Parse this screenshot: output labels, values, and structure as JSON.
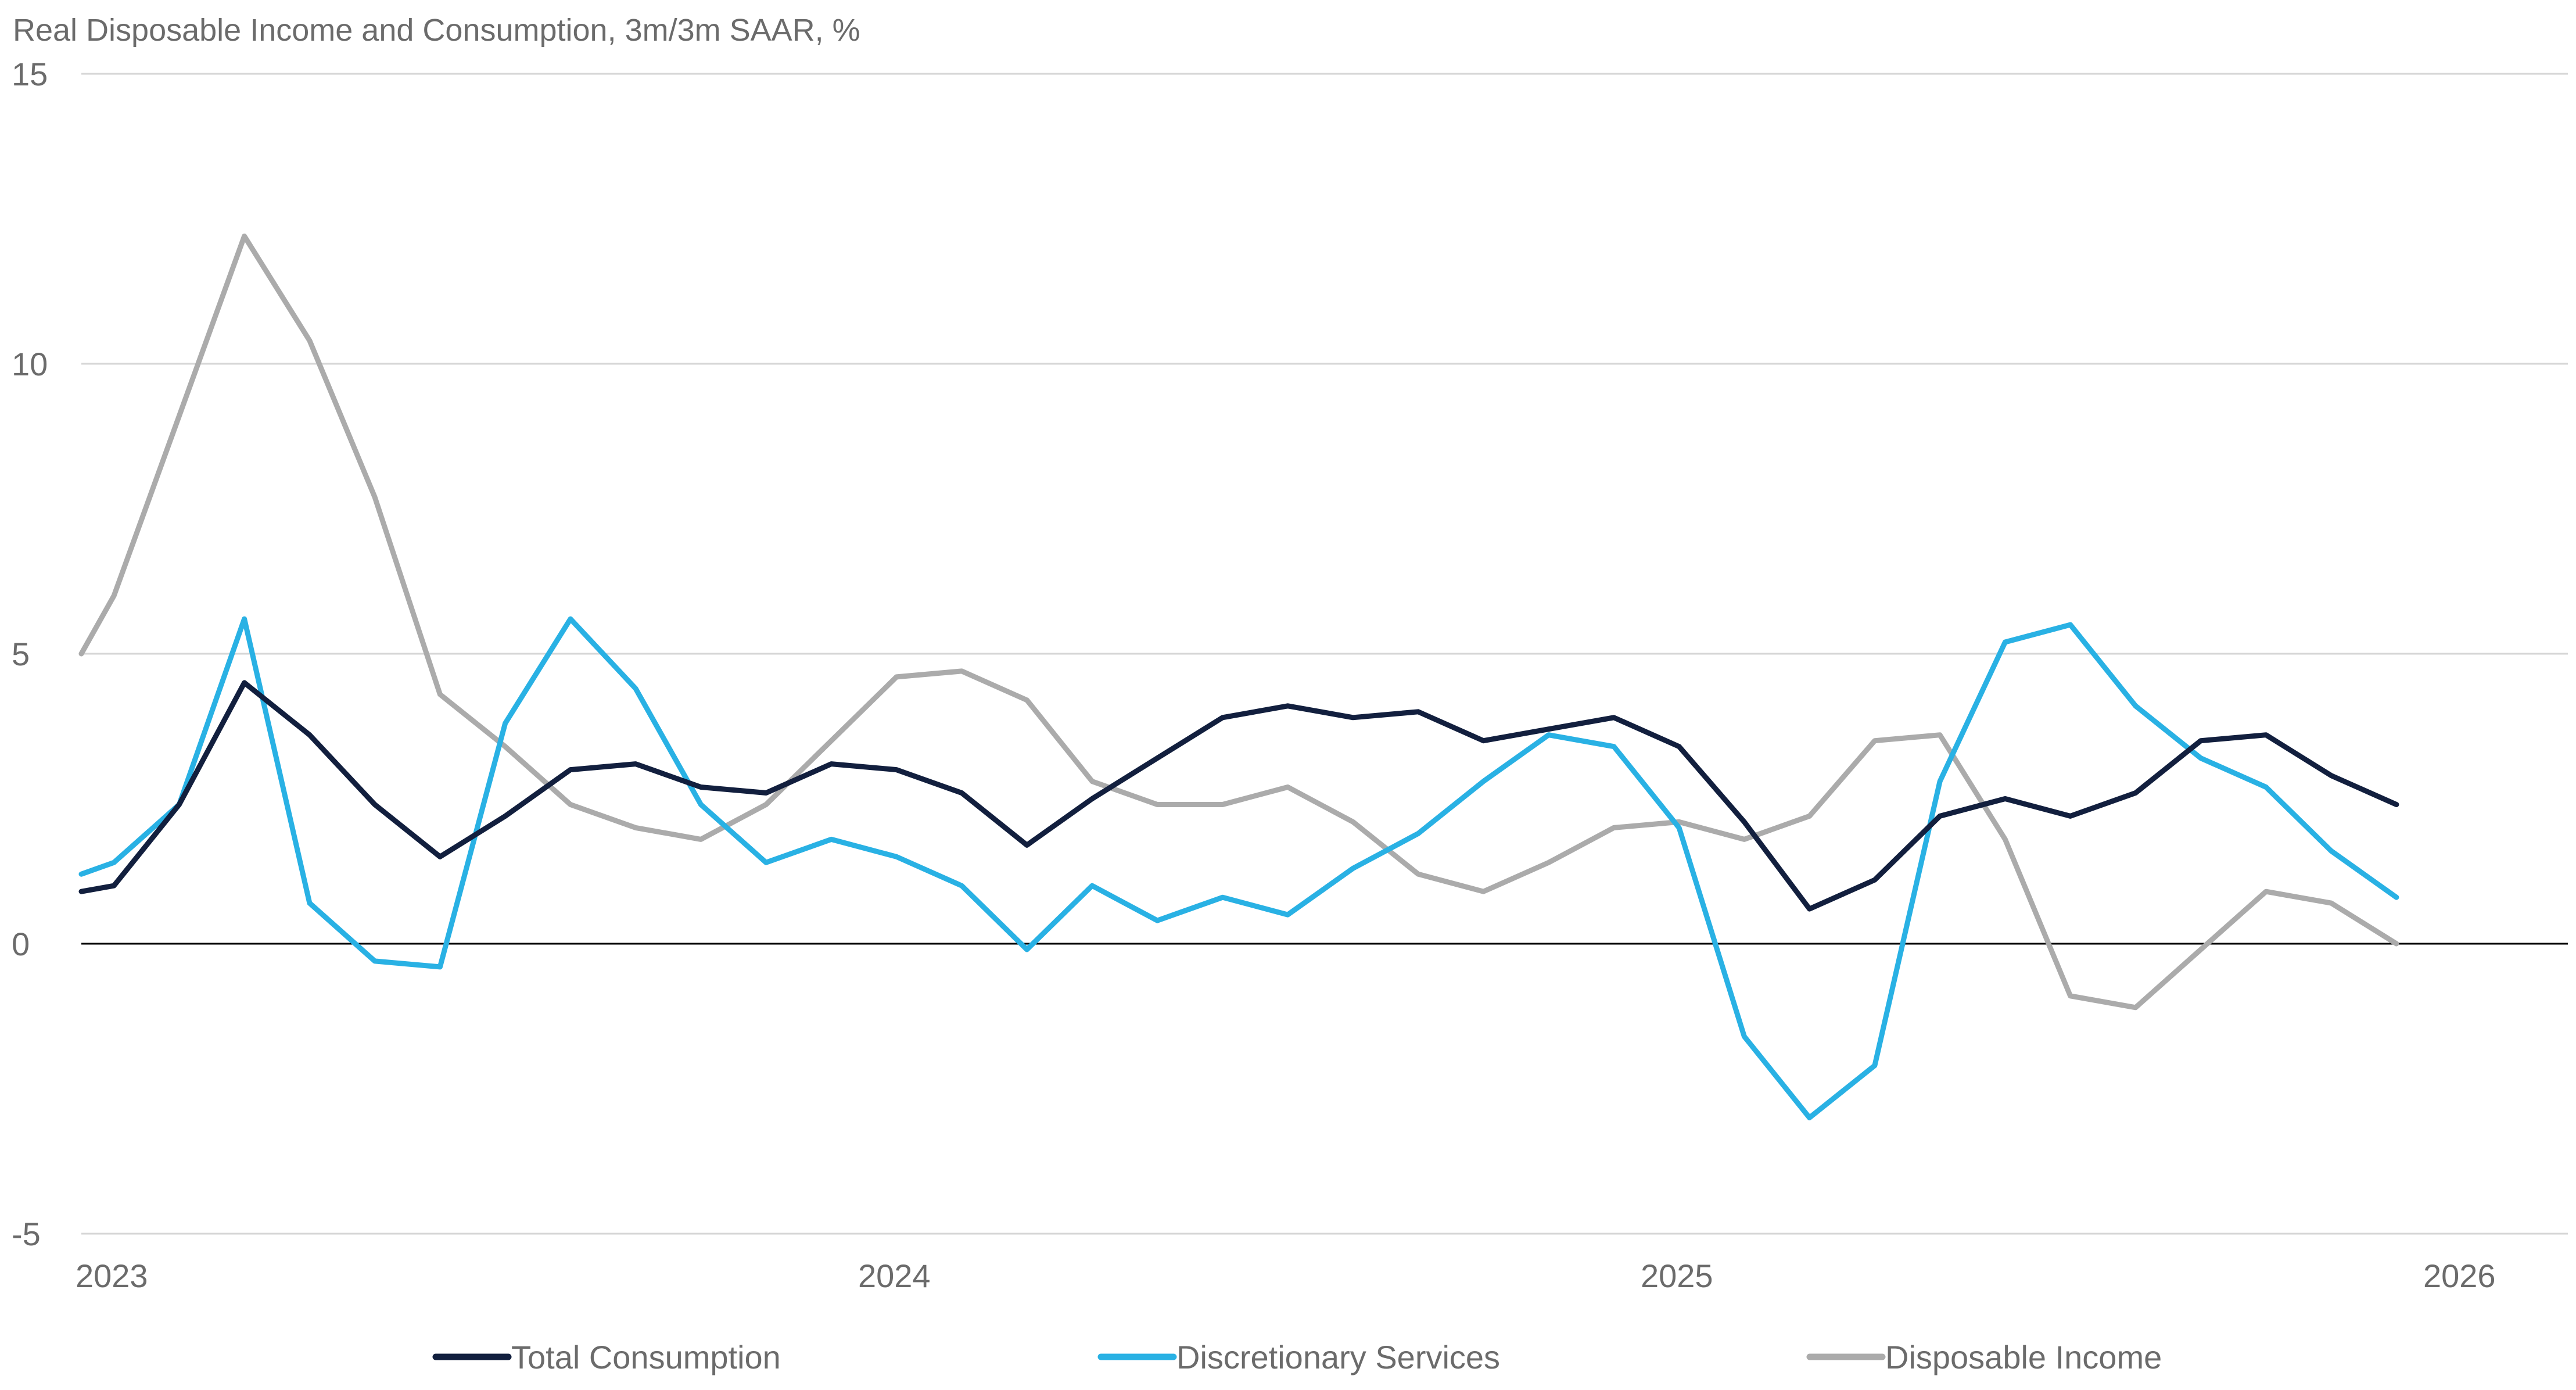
{
  "chart_data": {
    "type": "line",
    "title": "Real Disposable Income and Consumption, 3m/3m SAAR, %",
    "xlabel": "",
    "ylabel": "",
    "ylim": [
      -5,
      15
    ],
    "yticks": [
      15,
      10,
      5,
      0,
      -5
    ],
    "xlim": [
      0,
      38
    ],
    "xticks": [
      {
        "label": "2023",
        "x": 0
      },
      {
        "label": "2024",
        "x": 12
      },
      {
        "label": "2025",
        "x": 24
      },
      {
        "label": "2026",
        "x": 36
      }
    ],
    "grid": true,
    "legend_position": "bottom",
    "series": [
      {
        "name": "Total Consumption",
        "color": "#121f3e",
        "x": [
          0,
          0.5,
          1.5,
          2.5,
          3.5,
          4.5,
          5.5,
          6.5,
          7.5,
          8.5,
          9.5,
          10.5,
          11.5,
          12.5,
          13.5,
          14.5,
          15.5,
          16.5,
          17.5,
          18.5,
          19.5,
          20.5,
          21.5,
          22.5,
          23.5,
          24.5,
          25.5,
          26.5,
          27.5,
          28.5,
          29.5,
          30.5,
          31.5,
          32.5,
          33.5,
          34.5,
          35.5
        ],
        "values": [
          0.9,
          1.0,
          2.4,
          4.5,
          3.6,
          2.4,
          1.5,
          2.2,
          3.0,
          3.1,
          2.7,
          2.6,
          3.1,
          3.0,
          2.6,
          1.7,
          2.5,
          3.2,
          3.9,
          4.1,
          3.9,
          4.0,
          3.5,
          3.7,
          3.9,
          3.4,
          2.1,
          0.6,
          1.1,
          2.2,
          2.5,
          2.2,
          2.6,
          3.5,
          3.6,
          2.9,
          2.4
        ]
      },
      {
        "name": "Discretionary Services",
        "color": "#29b1e4",
        "x": [
          0,
          0.5,
          1.5,
          2.5,
          3.5,
          4.5,
          5.5,
          6.5,
          7.5,
          8.5,
          9.5,
          10.5,
          11.5,
          12.5,
          13.5,
          14.5,
          15.5,
          16.5,
          17.5,
          18.5,
          19.5,
          20.5,
          21.5,
          22.5,
          23.5,
          24.5,
          25.5,
          26.5,
          27.5,
          28.5,
          29.5,
          30.5,
          31.5,
          32.5,
          33.5,
          34.5,
          35.5
        ],
        "values": [
          1.2,
          1.4,
          2.4,
          5.6,
          0.7,
          -0.3,
          -0.4,
          3.8,
          5.6,
          4.4,
          2.4,
          1.4,
          1.8,
          1.5,
          1.0,
          -0.1,
          1.0,
          0.4,
          0.8,
          0.5,
          1.3,
          1.9,
          2.8,
          3.6,
          3.4,
          2.0,
          -1.6,
          -3.0,
          -2.1,
          2.8,
          5.2,
          5.5,
          4.1,
          3.2,
          2.7,
          1.6,
          0.8
        ]
      },
      {
        "name": "Disposable Income",
        "color": "#ababab",
        "x": [
          0,
          0.5,
          1.5,
          2.5,
          3.5,
          4.5,
          5.5,
          6.5,
          7.5,
          8.5,
          9.5,
          10.5,
          11.5,
          12.5,
          13.5,
          14.5,
          15.5,
          16.5,
          17.5,
          18.5,
          19.5,
          20.5,
          21.5,
          22.5,
          23.5,
          24.5,
          25.5,
          26.5,
          27.5,
          28.5,
          29.5,
          30.5,
          31.5,
          32.5,
          33.5,
          34.5,
          35.5
        ],
        "values": [
          5.0,
          6.0,
          9.1,
          12.2,
          10.4,
          7.7,
          4.3,
          3.4,
          2.4,
          2.0,
          1.8,
          2.4,
          3.5,
          4.6,
          4.7,
          4.2,
          2.8,
          2.4,
          2.4,
          2.7,
          2.1,
          1.2,
          0.9,
          1.4,
          2.0,
          2.1,
          1.8,
          2.2,
          3.5,
          3.6,
          1.8,
          -0.9,
          -1.1,
          -0.1,
          0.9,
          0.7,
          0.0
        ]
      }
    ]
  }
}
